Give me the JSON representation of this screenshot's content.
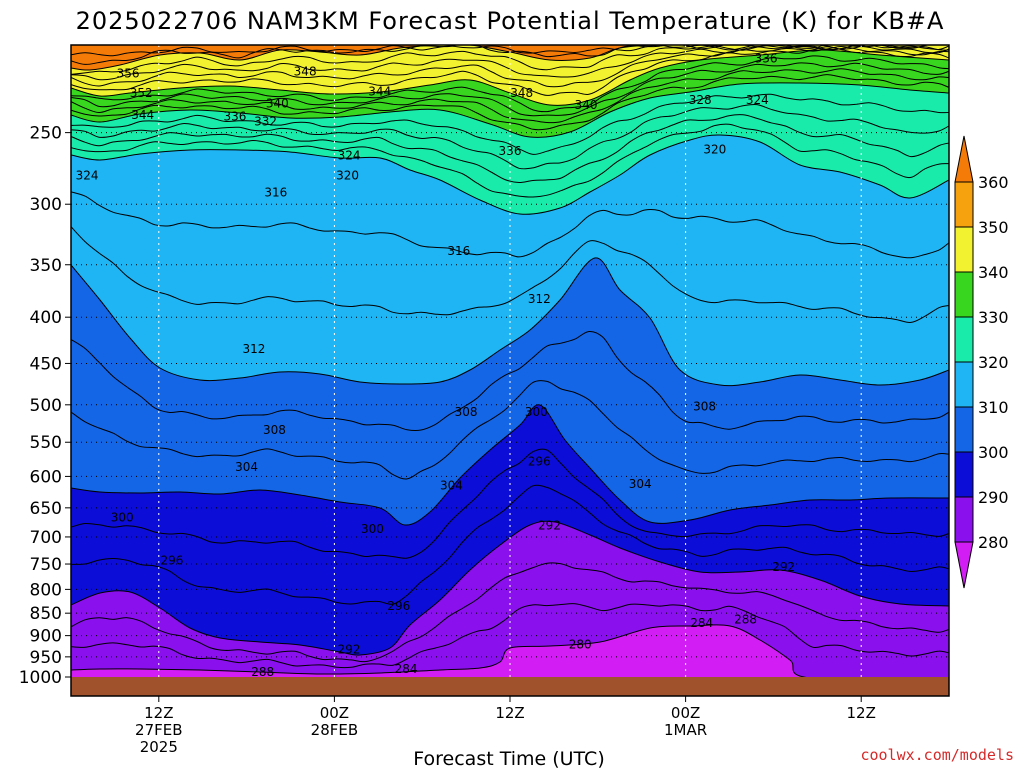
{
  "title": "2025022706 NAM3KM Forecast Potential Temperature (K) for KB#A",
  "credit": "coolwx.com/models",
  "chart_data": {
    "type": "contour",
    "xlabel": "Forecast Time (UTC)",
    "x_range_hours": [
      0,
      60
    ],
    "x_ticks": [
      {
        "hour": 6,
        "lines": [
          "12Z",
          "27FEB",
          "2025"
        ]
      },
      {
        "hour": 18,
        "lines": [
          "00Z",
          "28FEB"
        ]
      },
      {
        "hour": 30,
        "lines": [
          "12Z"
        ]
      },
      {
        "hour": 42,
        "lines": [
          "00Z",
          "1MAR"
        ]
      },
      {
        "hour": 54,
        "lines": [
          "12Z"
        ]
      }
    ],
    "y_axis": "pressure (hPa), log scale",
    "y_range": [
      1000,
      200
    ],
    "y_ticks": [
      "250",
      "300",
      "350",
      "400",
      "450",
      "500",
      "550",
      "600",
      "650",
      "700",
      "750",
      "800",
      "850",
      "900",
      "950",
      "1000"
    ],
    "colorbar": {
      "levels": [
        "280",
        "290",
        "300",
        "310",
        "320",
        "330",
        "340",
        "350",
        "360"
      ],
      "colors": [
        "#d21ef5",
        "#8a10ee",
        "#0d0dd8",
        "#1566e6",
        "#1fb4f3",
        "#18ebaa",
        "#38d61e",
        "#f2f231",
        "#f6a20e",
        "#f47b07"
      ]
    },
    "contour_labels": [
      {
        "text": "356",
        "hour": 3.9,
        "p": 215
      },
      {
        "text": "348",
        "hour": 16.0,
        "p": 214
      },
      {
        "text": "336",
        "hour": 47.5,
        "p": 207
      },
      {
        "text": "352",
        "hour": 4.8,
        "p": 226
      },
      {
        "text": "344",
        "hour": 21.1,
        "p": 225
      },
      {
        "text": "348",
        "hour": 30.8,
        "p": 226
      },
      {
        "text": "344",
        "hour": 4.9,
        "p": 239
      },
      {
        "text": "340",
        "hour": 14.1,
        "p": 232
      },
      {
        "text": "336",
        "hour": 11.2,
        "p": 240
      },
      {
        "text": "332",
        "hour": 13.3,
        "p": 243
      },
      {
        "text": "340",
        "hour": 35.2,
        "p": 233
      },
      {
        "text": "328",
        "hour": 43.0,
        "p": 230
      },
      {
        "text": "324",
        "hour": 46.9,
        "p": 230
      },
      {
        "text": "336",
        "hour": 30.0,
        "p": 262
      },
      {
        "text": "324",
        "hour": 19.0,
        "p": 265
      },
      {
        "text": "320",
        "hour": 44.0,
        "p": 261
      },
      {
        "text": "324",
        "hour": 1.1,
        "p": 279
      },
      {
        "text": "320",
        "hour": 18.9,
        "p": 279
      },
      {
        "text": "316",
        "hour": 14.0,
        "p": 291
      },
      {
        "text": "316",
        "hour": 26.5,
        "p": 338
      },
      {
        "text": "312",
        "hour": 32.0,
        "p": 382
      },
      {
        "text": "312",
        "hour": 12.5,
        "p": 434
      },
      {
        "text": "308",
        "hour": 27.0,
        "p": 509
      },
      {
        "text": "300",
        "hour": 31.8,
        "p": 509
      },
      {
        "text": "308",
        "hour": 43.3,
        "p": 502
      },
      {
        "text": "308",
        "hour": 13.9,
        "p": 533
      },
      {
        "text": "296",
        "hour": 32.0,
        "p": 578
      },
      {
        "text": "304",
        "hour": 12.0,
        "p": 586
      },
      {
        "text": "304",
        "hour": 26.0,
        "p": 614
      },
      {
        "text": "304",
        "hour": 38.9,
        "p": 612
      },
      {
        "text": "300",
        "hour": 3.5,
        "p": 666
      },
      {
        "text": "292",
        "hour": 32.7,
        "p": 680
      },
      {
        "text": "300",
        "hour": 20.6,
        "p": 686
      },
      {
        "text": "296",
        "hour": 6.9,
        "p": 743
      },
      {
        "text": "292",
        "hour": 48.7,
        "p": 756
      },
      {
        "text": "296",
        "hour": 22.4,
        "p": 835
      },
      {
        "text": "288",
        "hour": 46.1,
        "p": 864
      },
      {
        "text": "284",
        "hour": 43.1,
        "p": 872
      },
      {
        "text": "280",
        "hour": 34.8,
        "p": 920
      },
      {
        "text": "292",
        "hour": 19.0,
        "p": 932
      },
      {
        "text": "288",
        "hour": 13.1,
        "p": 987
      },
      {
        "text": "284",
        "hour": 22.9,
        "p": 980
      }
    ]
  }
}
